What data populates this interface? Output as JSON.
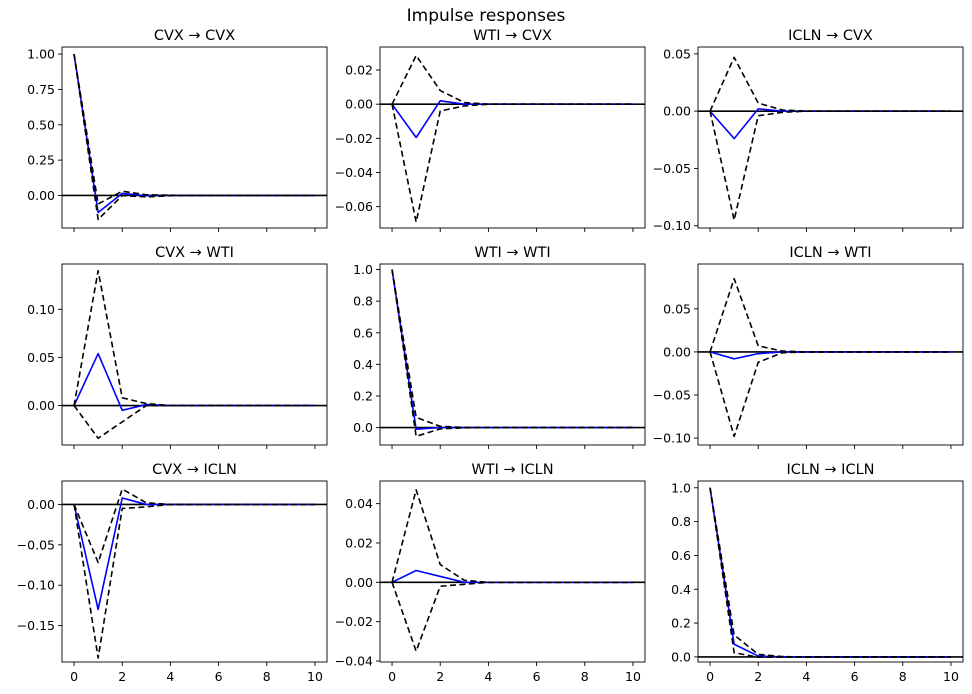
{
  "figure": {
    "title": "Impulse responses"
  },
  "x_ticks": [
    0,
    2,
    4,
    6,
    8,
    10
  ],
  "chart_data": [
    {
      "type": "line",
      "title": "CVX → CVX",
      "xlim": [
        -0.5,
        10.5
      ],
      "ylim": [
        -0.23,
        1.05
      ],
      "yticks": [
        1.0,
        0.75,
        0.5,
        0.25,
        0.0
      ],
      "yticklabels": [
        "1.00",
        "0.75",
        "0.50",
        "0.25",
        "0.00"
      ],
      "x": [
        0,
        1,
        2,
        3,
        4,
        5,
        6,
        7,
        8,
        9,
        10
      ],
      "series": [
        {
          "role": "response",
          "color": "#0000ff",
          "values": [
            1.0,
            -0.12,
            0.015,
            -0.002,
            0,
            0,
            0,
            0,
            0,
            0,
            0
          ]
        },
        {
          "role": "upper",
          "color": "#000000",
          "values": [
            1.0,
            -0.06,
            0.03,
            0.005,
            0.002,
            0,
            0,
            0,
            0,
            0,
            0
          ]
        },
        {
          "role": "lower",
          "color": "#000000",
          "values": [
            1.0,
            -0.17,
            0.0,
            -0.01,
            -0.002,
            0,
            0,
            0,
            0,
            0,
            0
          ]
        }
      ]
    },
    {
      "type": "line",
      "title": "WTI → CVX",
      "xlim": [
        -0.5,
        10.5
      ],
      "ylim": [
        -0.0725,
        0.0335
      ],
      "yticks": [
        0.02,
        0.0,
        -0.02,
        -0.04,
        -0.06
      ],
      "yticklabels": [
        "0.02",
        "0.00",
        "−0.02",
        "−0.04",
        "−0.06"
      ],
      "x": [
        0,
        1,
        2,
        3,
        4,
        5,
        6,
        7,
        8,
        9,
        10
      ],
      "series": [
        {
          "role": "response",
          "color": "#0000ff",
          "values": [
            0.0,
            -0.0195,
            0.002,
            0.0,
            0,
            0,
            0,
            0,
            0,
            0,
            0
          ]
        },
        {
          "role": "upper",
          "color": "#000000",
          "values": [
            0.0,
            0.0285,
            0.008,
            0.001,
            0,
            0,
            0,
            0,
            0,
            0,
            0
          ]
        },
        {
          "role": "lower",
          "color": "#000000",
          "values": [
            0.0,
            -0.069,
            -0.004,
            -0.001,
            0,
            0,
            0,
            0,
            0,
            0,
            0
          ]
        }
      ]
    },
    {
      "type": "line",
      "title": "ICLN → CVX",
      "xlim": [
        -0.5,
        10.5
      ],
      "ylim": [
        -0.102,
        0.056
      ],
      "yticks": [
        0.05,
        0.0,
        -0.05,
        -0.1
      ],
      "yticklabels": [
        "0.05",
        "0.00",
        "−0.05",
        "−0.10"
      ],
      "x": [
        0,
        1,
        2,
        3,
        4,
        5,
        6,
        7,
        8,
        9,
        10
      ],
      "series": [
        {
          "role": "response",
          "color": "#0000ff",
          "values": [
            0.0,
            -0.024,
            0.002,
            0.0,
            0,
            0,
            0,
            0,
            0,
            0,
            0
          ]
        },
        {
          "role": "upper",
          "color": "#000000",
          "values": [
            0.0,
            0.047,
            0.007,
            0.001,
            0,
            0,
            0,
            0,
            0,
            0,
            0
          ]
        },
        {
          "role": "lower",
          "color": "#000000",
          "values": [
            0.0,
            -0.095,
            -0.004,
            -0.001,
            0,
            0,
            0,
            0,
            0,
            0,
            0
          ]
        }
      ]
    },
    {
      "type": "line",
      "title": "CVX → WTI",
      "xlim": [
        -0.5,
        10.5
      ],
      "ylim": [
        -0.041,
        0.147
      ],
      "yticks": [
        0.1,
        0.05,
        0.0
      ],
      "yticklabels": [
        "0.10",
        "0.05",
        "0.00"
      ],
      "x": [
        0,
        1,
        2,
        3,
        4,
        5,
        6,
        7,
        8,
        9,
        10
      ],
      "series": [
        {
          "role": "response",
          "color": "#0000ff",
          "values": [
            0.0,
            0.054,
            -0.005,
            0.001,
            0,
            0,
            0,
            0,
            0,
            0,
            0
          ]
        },
        {
          "role": "upper",
          "color": "#000000",
          "values": [
            0.0,
            0.14,
            0.008,
            0.002,
            0,
            0,
            0,
            0,
            0,
            0,
            0
          ]
        },
        {
          "role": "lower",
          "color": "#000000",
          "values": [
            0.0,
            -0.034,
            -0.017,
            0.0,
            0,
            0,
            0,
            0,
            0,
            0,
            0
          ]
        }
      ]
    },
    {
      "type": "line",
      "title": "WTI → WTI",
      "xlim": [
        -0.5,
        10.5
      ],
      "ylim": [
        -0.11,
        1.035
      ],
      "yticks": [
        1.0,
        0.8,
        0.6,
        0.4,
        0.2,
        0.0
      ],
      "yticklabels": [
        "1.0",
        "0.8",
        "0.6",
        "0.4",
        "0.2",
        "0.0"
      ],
      "x": [
        0,
        1,
        2,
        3,
        4,
        5,
        6,
        7,
        8,
        9,
        10
      ],
      "series": [
        {
          "role": "response",
          "color": "#0000ff",
          "values": [
            1.0,
            -0.01,
            0.0,
            0.0,
            0,
            0,
            0,
            0,
            0,
            0,
            0
          ]
        },
        {
          "role": "upper",
          "color": "#000000",
          "values": [
            1.0,
            0.065,
            0.008,
            0.001,
            0,
            0,
            0,
            0,
            0,
            0,
            0
          ]
        },
        {
          "role": "lower",
          "color": "#000000",
          "values": [
            1.0,
            -0.055,
            -0.008,
            -0.001,
            0,
            0,
            0,
            0,
            0,
            0,
            0
          ]
        }
      ]
    },
    {
      "type": "line",
      "title": "ICLN → WTI",
      "xlim": [
        -0.5,
        10.5
      ],
      "ylim": [
        -0.108,
        0.102
      ],
      "yticks": [
        0.05,
        0.0,
        -0.05,
        -0.1
      ],
      "yticklabels": [
        "0.05",
        "0.00",
        "−0.05",
        "−0.10"
      ],
      "x": [
        0,
        1,
        2,
        3,
        4,
        5,
        6,
        7,
        8,
        9,
        10
      ],
      "series": [
        {
          "role": "response",
          "color": "#0000ff",
          "values": [
            0.0,
            -0.008,
            -0.002,
            0.0,
            0,
            0,
            0,
            0,
            0,
            0,
            0
          ]
        },
        {
          "role": "upper",
          "color": "#000000",
          "values": [
            0.0,
            0.085,
            0.007,
            0.001,
            0,
            0,
            0,
            0,
            0,
            0,
            0
          ]
        },
        {
          "role": "lower",
          "color": "#000000",
          "values": [
            0.0,
            -0.098,
            -0.012,
            -0.001,
            0,
            0,
            0,
            0,
            0,
            0,
            0
          ]
        }
      ]
    },
    {
      "type": "line",
      "title": "CVX → ICLN",
      "xlim": [
        -0.5,
        10.5
      ],
      "ylim": [
        -0.195,
        0.029
      ],
      "yticks": [
        0.0,
        -0.05,
        -0.1,
        -0.15
      ],
      "yticklabels": [
        "0.00",
        "−0.05",
        "−0.10",
        "−0.15"
      ],
      "x": [
        0,
        1,
        2,
        3,
        4,
        5,
        6,
        7,
        8,
        9,
        10
      ],
      "series": [
        {
          "role": "response",
          "color": "#0000ff",
          "values": [
            0.0,
            -0.13,
            0.008,
            0.0,
            0,
            0,
            0,
            0,
            0,
            0,
            0
          ]
        },
        {
          "role": "upper",
          "color": "#000000",
          "values": [
            0.0,
            -0.072,
            0.019,
            0.002,
            0,
            0,
            0,
            0,
            0,
            0,
            0
          ]
        },
        {
          "role": "lower",
          "color": "#000000",
          "values": [
            0.0,
            -0.19,
            -0.005,
            -0.003,
            0,
            0,
            0,
            0,
            0,
            0,
            0
          ]
        }
      ]
    },
    {
      "type": "line",
      "title": "WTI → ICLN",
      "xlim": [
        -0.5,
        10.5
      ],
      "ylim": [
        -0.0405,
        0.0515
      ],
      "yticks": [
        0.04,
        0.02,
        0.0,
        -0.02,
        -0.04
      ],
      "yticklabels": [
        "0.04",
        "0.02",
        "0.00",
        "−0.02",
        "−0.04"
      ],
      "x": [
        0,
        1,
        2,
        3,
        4,
        5,
        6,
        7,
        8,
        9,
        10
      ],
      "series": [
        {
          "role": "response",
          "color": "#0000ff",
          "values": [
            0.0,
            0.006,
            0.003,
            0.0,
            0,
            0,
            0,
            0,
            0,
            0,
            0
          ]
        },
        {
          "role": "upper",
          "color": "#000000",
          "values": [
            0.0,
            0.047,
            0.009,
            0.001,
            0,
            0,
            0,
            0,
            0,
            0,
            0
          ]
        },
        {
          "role": "lower",
          "color": "#000000",
          "values": [
            0.0,
            -0.035,
            -0.002,
            -0.001,
            0,
            0,
            0,
            0,
            0,
            0,
            0
          ]
        }
      ]
    },
    {
      "type": "line",
      "title": "ICLN → ICLN",
      "xlim": [
        -0.5,
        10.5
      ],
      "ylim": [
        -0.03,
        1.04
      ],
      "yticks": [
        1.0,
        0.8,
        0.6,
        0.4,
        0.2,
        0.0
      ],
      "yticklabels": [
        "1.0",
        "0.8",
        "0.6",
        "0.4",
        "0.2",
        "0.0"
      ],
      "x": [
        0,
        1,
        2,
        3,
        4,
        5,
        6,
        7,
        8,
        9,
        10
      ],
      "series": [
        {
          "role": "response",
          "color": "#0000ff",
          "values": [
            1.0,
            0.075,
            0.005,
            0.0,
            0,
            0,
            0,
            0,
            0,
            0,
            0
          ]
        },
        {
          "role": "upper",
          "color": "#000000",
          "values": [
            1.0,
            0.13,
            0.015,
            0.002,
            0,
            0,
            0,
            0,
            0,
            0,
            0
          ]
        },
        {
          "role": "lower",
          "color": "#000000",
          "values": [
            1.0,
            0.025,
            -0.002,
            -0.001,
            0,
            0,
            0,
            0,
            0,
            0,
            0
          ]
        }
      ]
    }
  ]
}
